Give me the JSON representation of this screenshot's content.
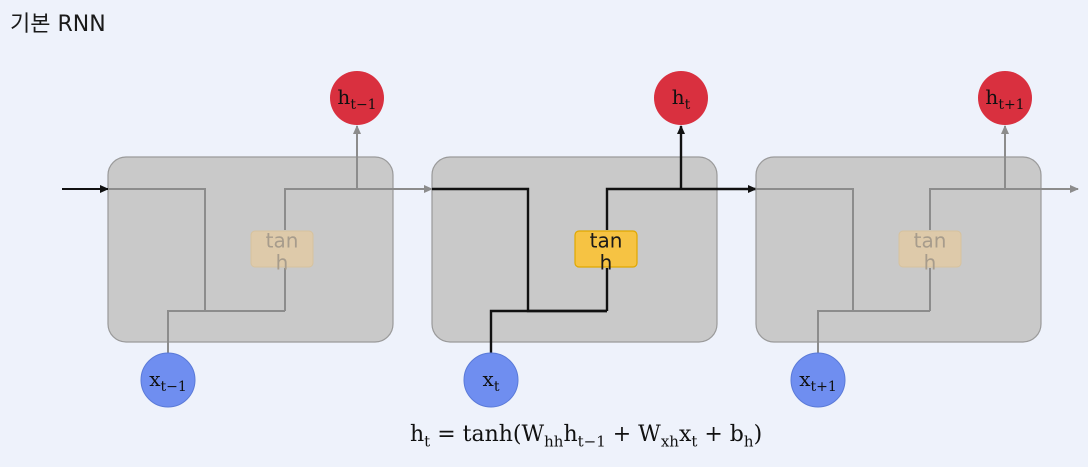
{
  "title": "기본 RNN",
  "cells": [
    {
      "tanh_line1": "tan",
      "tanh_line2": "h",
      "h_label": "h",
      "h_sub": "t−1",
      "x_label": "x",
      "x_sub": "t−1"
    },
    {
      "tanh_line1": "tan",
      "tanh_line2": "h",
      "h_label": "h",
      "h_sub": "t",
      "x_label": "x",
      "x_sub": "t"
    },
    {
      "tanh_line1": "tan",
      "tanh_line2": "h",
      "h_label": "h",
      "h_sub": "t+1",
      "x_label": "x",
      "x_sub": "t+1"
    }
  ],
  "formula": {
    "lhs": "h",
    "lhs_sub": "t",
    "eq": " = tanh(W",
    "w1_sub": "hh",
    "h_prev": "h",
    "h_prev_sub": "t−1",
    "plus1": " + W",
    "w2_sub": "xh",
    "x": "x",
    "x_sub": "t",
    "plus2": " + b",
    "b_sub": "h",
    "close": ")"
  },
  "colors": {
    "output_node": "#d9303f",
    "input_node": "#6f8ef0",
    "tanh_active": "#f6c343",
    "cell_fill": "#c9c9c9"
  }
}
